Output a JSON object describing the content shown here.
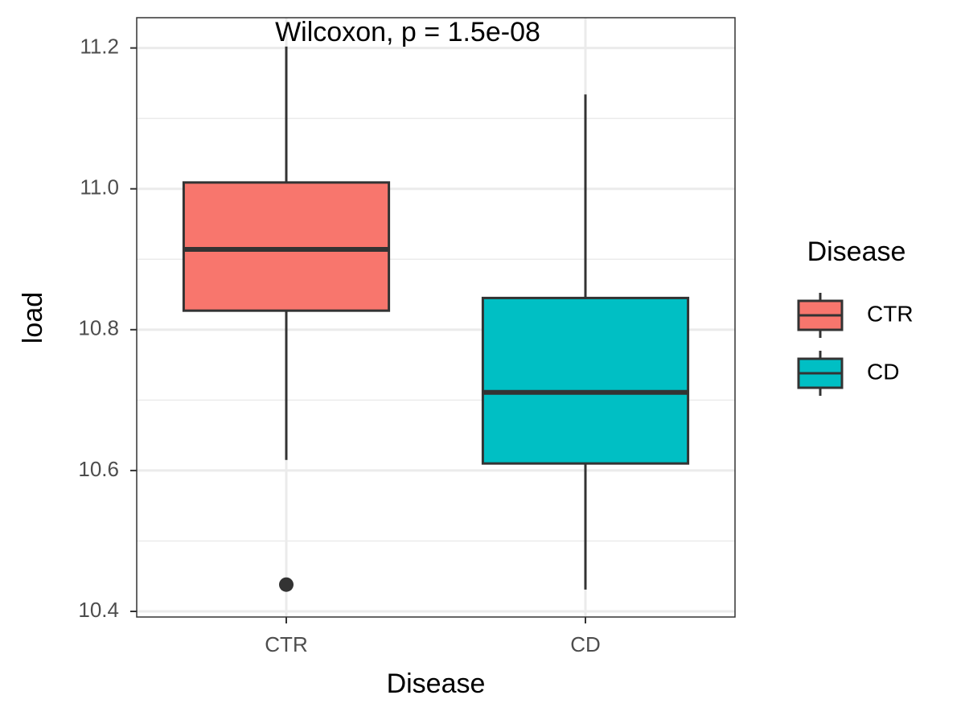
{
  "chart_data": {
    "type": "box",
    "annotation": "Wilcoxon, p = 1.5e-08",
    "x_label": "Disease",
    "y_label": "load",
    "legend_title": "Disease",
    "categories": [
      "CTR",
      "CD"
    ],
    "boxes": [
      {
        "color": "#f8766d",
        "min": 10.615,
        "q1": 10.827,
        "median": 10.914,
        "q3": 11.009,
        "max": 11.202,
        "outliers": [
          10.438
        ]
      },
      {
        "color": "#00bfc4",
        "min": 10.431,
        "q1": 10.61,
        "median": 10.711,
        "q3": 10.845,
        "max": 11.134,
        "outliers": []
      }
    ],
    "ylim": [
      10.392,
      11.243
    ],
    "yticks": [
      10.4,
      10.6,
      10.8,
      {
        "value": 11,
        "label": "11.0"
      },
      11.2
    ],
    "minor_yticks": [
      10.5,
      10.7,
      10.9,
      11.1
    ],
    "grid": true
  }
}
